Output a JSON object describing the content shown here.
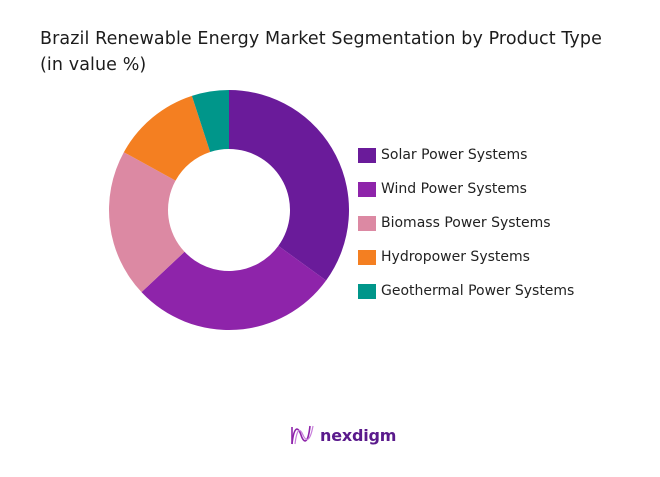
{
  "title": {
    "line1": "Brazil Renewable Energy Market Segmentation by Product Type",
    "line2": "(in value %)"
  },
  "legend": [
    {
      "label": "Solar Power Systems",
      "color": "#6a1b9a"
    },
    {
      "label": "Wind Power Systems",
      "color": "#8e24aa"
    },
    {
      "label": "Biomass Power Systems",
      "color": "#dc89a3"
    },
    {
      "label": "Hydropower Systems",
      "color": "#f47f21"
    },
    {
      "label": "Geothermal Power Systems",
      "color": "#00968a"
    }
  ],
  "logo": {
    "text": "nexdigm"
  },
  "chart_data": {
    "type": "pie",
    "variant": "donut",
    "title": "Brazil Renewable Energy Market Segmentation by Product Type (in value %)",
    "categories": [
      "Solar Power Systems",
      "Wind Power Systems",
      "Biomass Power Systems",
      "Hydropower Systems",
      "Geothermal Power Systems"
    ],
    "values": [
      35,
      28,
      20,
      12,
      5
    ],
    "colors": [
      "#6a1b9a",
      "#8e24aa",
      "#dc89a3",
      "#f47f21",
      "#00968a"
    ],
    "legend_position": "right",
    "data_labels": false
  }
}
